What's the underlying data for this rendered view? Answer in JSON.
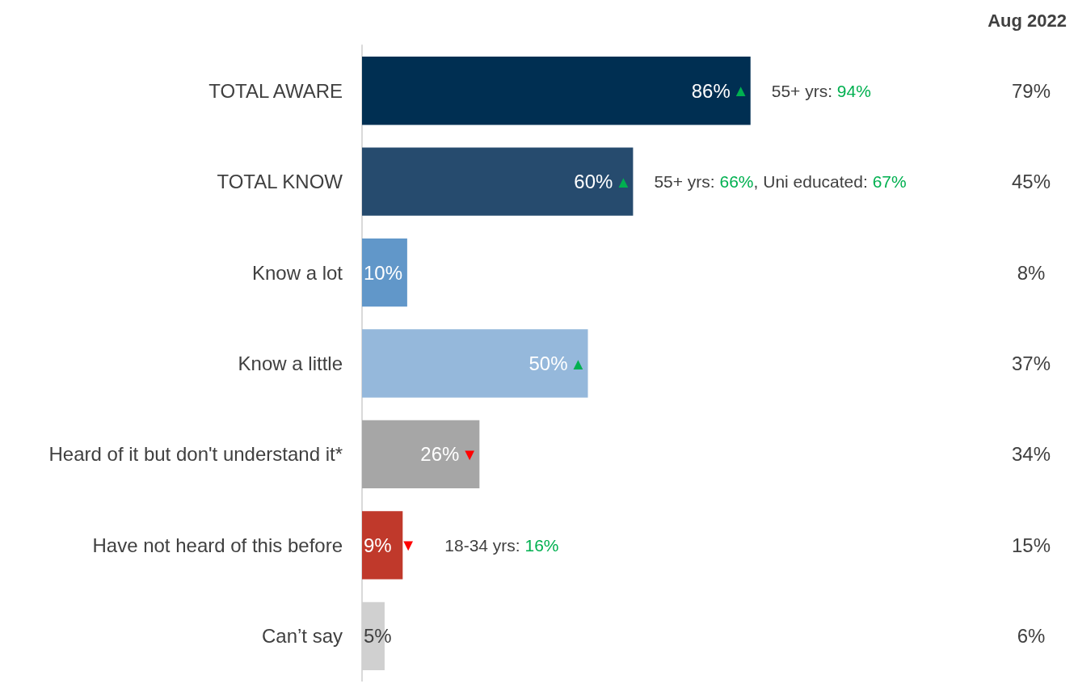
{
  "chart_data": {
    "type": "bar",
    "orientation": "horizontal",
    "categories": [
      "TOTAL AWARE",
      "TOTAL KNOW",
      "Know a lot",
      "Know a little",
      "Heard of it but don't understand it*",
      "Have not heard of this before",
      "Can’t say"
    ],
    "values": [
      86,
      60,
      10,
      50,
      26,
      9,
      5
    ],
    "colors": [
      "#002f52",
      "#264b6e",
      "#6197c9",
      "#95b8db",
      "#a6a6a6",
      "#c0392b",
      "#d0d0d0"
    ],
    "value_labels": [
      "86%",
      "60%",
      "10%",
      "50%",
      "26%",
      "9%",
      "5%"
    ],
    "tick_labels": "y",
    "annotations": [
      {
        "text": "▲",
        "x": 86,
        "y": "TOTAL AWARE"
      },
      {
        "text": "▲",
        "x": 60,
        "y": "TOTAL KNOW"
      },
      {
        "text": "▲",
        "x": 50,
        "y": "Know a little"
      },
      {
        "text": "▼",
        "x": 26,
        "y": "Heard of it but don't understand it*"
      },
      {
        "text": "▼",
        "x": 9,
        "y": "Have not heard of this before"
      },
      {
        "text": "55+ yrs: 94%",
        "x": 86,
        "y": "TOTAL AWARE"
      },
      {
        "text": "55+ yrs: 66%, Uni educated: 67%",
        "x": 60,
        "y": "TOTAL KNOW"
      },
      {
        "text": "18-34 yrs: 16%",
        "x": 9,
        "y": "Have not heard of this before"
      },
      "Aug 2022",
      "79%",
      "45%",
      "8%",
      "37%",
      "34%",
      "15%",
      "6%"
    ]
  }
}
